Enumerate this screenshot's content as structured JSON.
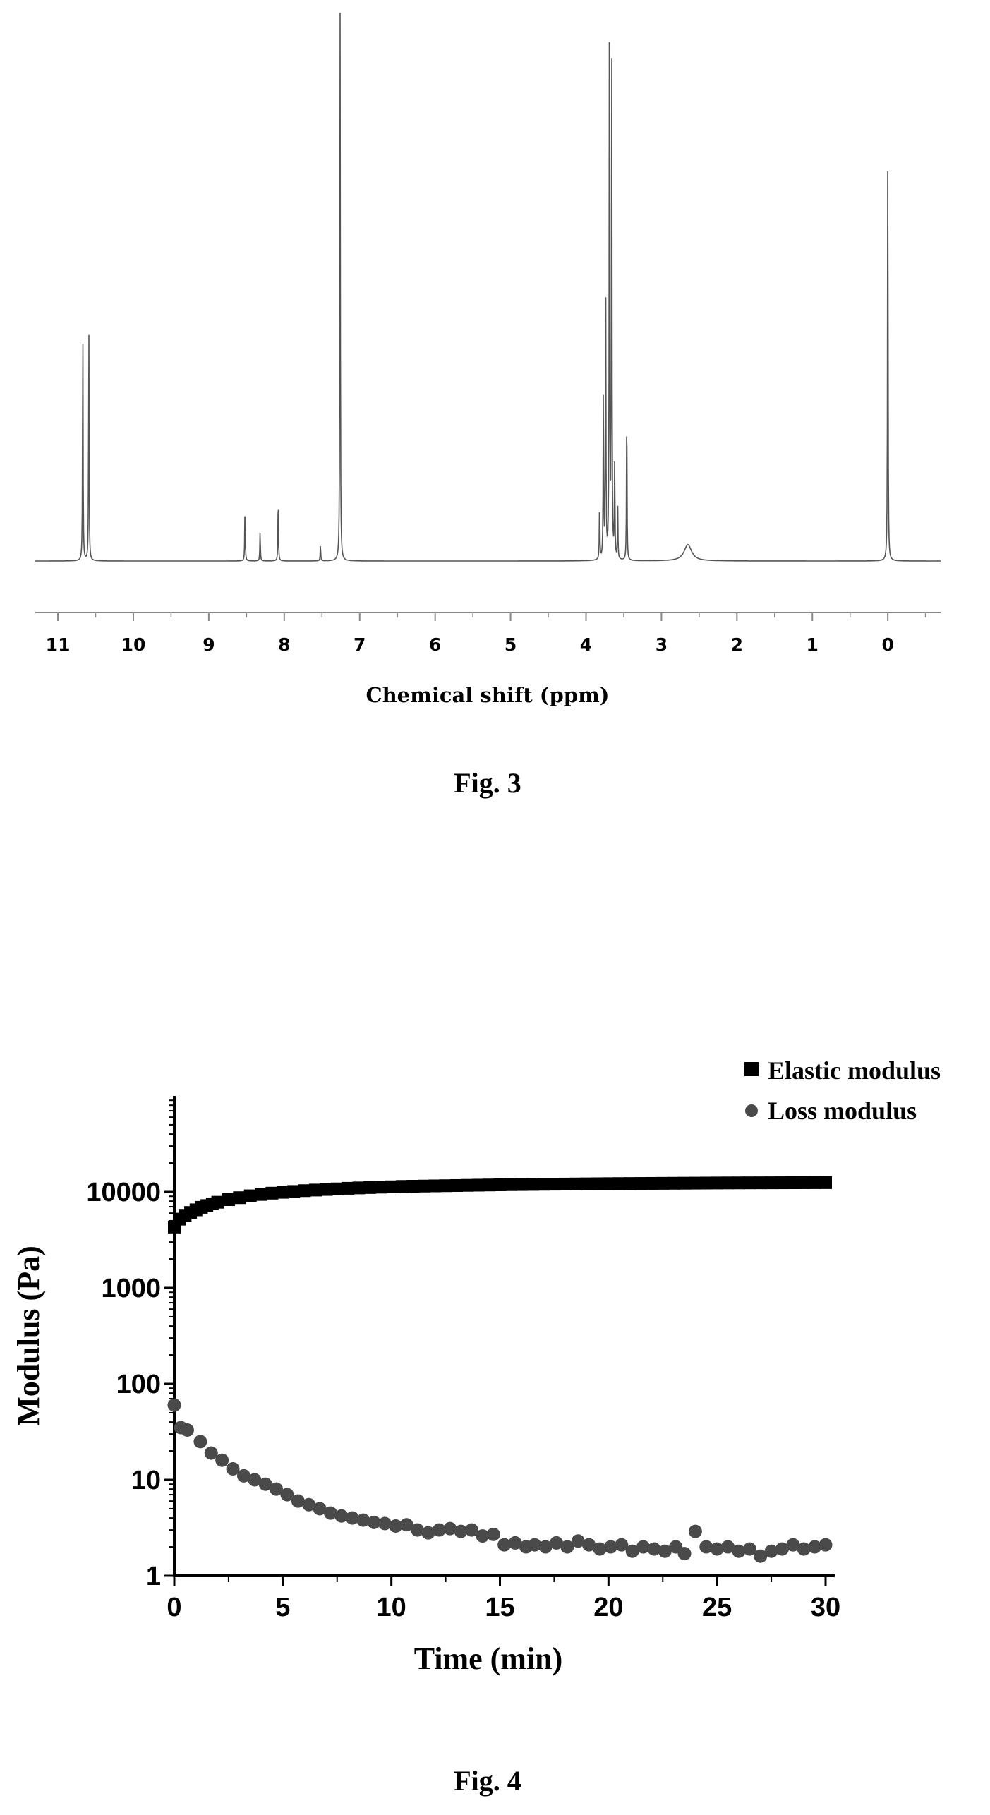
{
  "figures": {
    "fig3_caption": "Fig. 3",
    "fig4_caption": "Fig. 4"
  },
  "chart_data": [
    {
      "type": "line",
      "xlabel": "Chemical shift (ppm)",
      "ylabel": "",
      "x_ticks": [
        11,
        10,
        9,
        8,
        7,
        6,
        5,
        4,
        3,
        2,
        1,
        0
      ],
      "xlim": [
        11.3,
        -0.7
      ],
      "x_reversed": true,
      "grid": false,
      "line_color": "#555555",
      "peaks": [
        {
          "x": 10.67,
          "y": 0.44
        },
        {
          "x": 10.59,
          "y": 0.43
        },
        {
          "x": 8.52,
          "y": 0.105
        },
        {
          "x": 8.32,
          "y": 0.055
        },
        {
          "x": 8.08,
          "y": 0.12
        },
        {
          "x": 7.52,
          "y": 0.03
        },
        {
          "x": 7.26,
          "y": 1.02
        },
        {
          "x": 3.82,
          "y": 0.11
        },
        {
          "x": 3.77,
          "y": 0.3
        },
        {
          "x": 3.74,
          "y": 0.58
        },
        {
          "x": 3.69,
          "y": 1.02
        },
        {
          "x": 3.66,
          "y": 1.02
        },
        {
          "x": 3.62,
          "y": 0.18
        },
        {
          "x": 3.58,
          "y": 0.1
        },
        {
          "x": 3.46,
          "y": 0.29
        },
        {
          "x": 2.65,
          "y": 0.03,
          "broad": true
        },
        {
          "x": 0.0,
          "y": 0.81
        }
      ]
    },
    {
      "type": "scatter",
      "xlabel": "Time (min)",
      "ylabel": "Modulus (Pa)",
      "x_ticks": [
        0,
        5,
        10,
        15,
        20,
        25,
        30
      ],
      "y_ticks": [
        "1",
        "10",
        "100",
        "1000",
        "10000"
      ],
      "xlim": [
        0,
        30
      ],
      "ylim": [
        1,
        100000
      ],
      "y_scale": "log",
      "grid": false,
      "legend_position": "top-right",
      "series": [
        {
          "name": "Elastic modulus",
          "marker": "square",
          "color": "#000000",
          "x": [
            0.0,
            0.25,
            0.5,
            0.75,
            1.0,
            1.25,
            1.5,
            1.75,
            2.0,
            2.5,
            3.0,
            3.5,
            4.0,
            4.5,
            5.0,
            5.5,
            6.0,
            6.5,
            7.0,
            7.5,
            8.0,
            8.5,
            9.0,
            9.5,
            10.0,
            10.5,
            11.0,
            11.5,
            12.0,
            12.5,
            13.0,
            13.5,
            14.0,
            14.5,
            15.0,
            15.5,
            16.0,
            16.5,
            17.0,
            17.5,
            18.0,
            18.5,
            19.0,
            19.5,
            20.0,
            20.5,
            21.0,
            21.5,
            22.0,
            22.5,
            23.0,
            23.5,
            24.0,
            24.5,
            25.0,
            25.5,
            26.0,
            26.5,
            27.0,
            27.5,
            28.0,
            28.5,
            29.0,
            29.5,
            30.0
          ],
          "y": [
            4300,
            5200,
            5700,
            6100,
            6500,
            6900,
            7200,
            7500,
            7800,
            8300,
            8700,
            9100,
            9400,
            9700,
            9900,
            10100,
            10300,
            10450,
            10600,
            10750,
            10900,
            11000,
            11100,
            11200,
            11300,
            11400,
            11450,
            11500,
            11550,
            11600,
            11650,
            11700,
            11750,
            11800,
            11850,
            11900,
            11930,
            11960,
            12000,
            12030,
            12060,
            12090,
            12120,
            12150,
            12180,
            12200,
            12220,
            12240,
            12260,
            12280,
            12300,
            12320,
            12340,
            12360,
            12380,
            12400,
            12410,
            12420,
            12430,
            12440,
            12450,
            12460,
            12470,
            12480,
            12490
          ]
        },
        {
          "name": "Loss modulus",
          "marker": "circle",
          "color": "#4a4a4a",
          "x": [
            0.0,
            0.3,
            0.6,
            1.2,
            1.7,
            2.2,
            2.7,
            3.2,
            3.7,
            4.2,
            4.7,
            5.2,
            5.7,
            6.2,
            6.7,
            7.2,
            7.7,
            8.2,
            8.7,
            9.2,
            9.7,
            10.2,
            10.7,
            11.2,
            11.7,
            12.2,
            12.7,
            13.2,
            13.7,
            14.2,
            14.7,
            15.2,
            15.7,
            16.2,
            16.6,
            17.1,
            17.6,
            18.1,
            18.6,
            19.1,
            19.6,
            20.1,
            20.6,
            21.1,
            21.6,
            22.1,
            22.6,
            23.1,
            23.5,
            24.0,
            24.5,
            25.0,
            25.5,
            26.0,
            26.5,
            27.0,
            27.5,
            28.0,
            28.5,
            29.0,
            29.5,
            30.0
          ],
          "y": [
            60,
            35,
            33,
            25,
            19,
            16,
            13,
            11,
            10,
            9,
            8,
            7,
            6,
            5.5,
            5.0,
            4.5,
            4.2,
            4.0,
            3.8,
            3.6,
            3.5,
            3.3,
            3.4,
            3.0,
            2.8,
            3.0,
            3.1,
            2.9,
            3.0,
            2.6,
            2.7,
            2.1,
            2.2,
            2.0,
            2.1,
            2.0,
            2.2,
            2.0,
            2.3,
            2.1,
            1.9,
            2.0,
            2.1,
            1.8,
            2.0,
            1.9,
            1.8,
            2.0,
            1.7,
            2.9,
            2.0,
            1.9,
            2.0,
            1.8,
            1.9,
            1.6,
            1.8,
            1.9,
            2.1,
            1.9,
            2.0,
            2.1
          ]
        }
      ]
    }
  ]
}
